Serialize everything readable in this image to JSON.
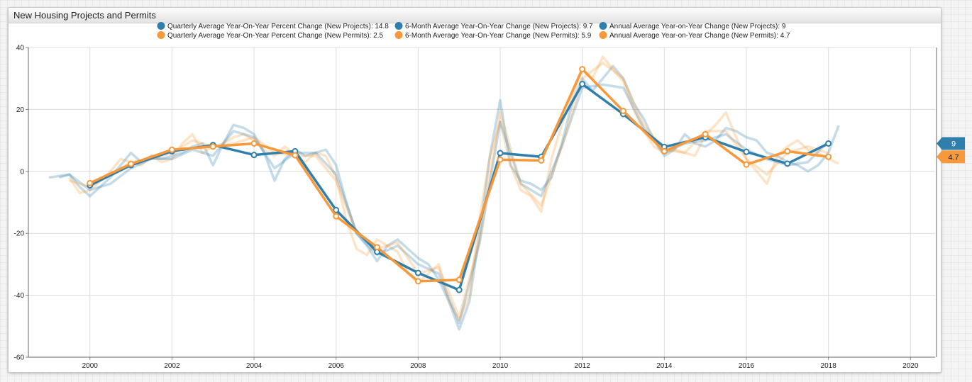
{
  "panel": {
    "title": "New Housing Projects and Permits"
  },
  "chart_data": {
    "type": "line",
    "title": "New Housing Projects and Permits",
    "xlabel": "",
    "ylabel": "",
    "xlim": [
      1998.5,
      2020.6
    ],
    "ylim": [
      -60,
      40
    ],
    "x_ticks": [
      2000,
      2002,
      2004,
      2006,
      2008,
      2010,
      2012,
      2014,
      2016,
      2018,
      2020
    ],
    "y_ticks": [
      40,
      20,
      0,
      -20,
      -40,
      -60
    ],
    "grid": true,
    "legend_position": "top-center",
    "series": [
      {
        "name": "Quarterly Average Year-On-Year Percent Change (New Projects): 14.8",
        "color": "#2f7fad",
        "style": "faint",
        "x": [
          1999.25,
          1999.5,
          1999.75,
          2000.0,
          2000.25,
          2000.5,
          2000.75,
          2001.0,
          2001.25,
          2001.5,
          2001.75,
          2002.0,
          2002.25,
          2002.5,
          2002.75,
          2003.0,
          2003.25,
          2003.5,
          2003.75,
          2004.0,
          2004.25,
          2004.5,
          2004.75,
          2005.0,
          2005.25,
          2005.5,
          2005.75,
          2006.0,
          2006.25,
          2006.5,
          2006.75,
          2007.0,
          2007.25,
          2007.5,
          2007.75,
          2008.0,
          2008.25,
          2008.5,
          2008.75,
          2009.0,
          2009.25,
          2009.5,
          2009.75,
          2010.0,
          2010.25,
          2010.5,
          2010.75,
          2011.0,
          2011.25,
          2011.5,
          2011.75,
          2012.0,
          2012.25,
          2012.5,
          2012.75,
          2013.0,
          2013.25,
          2013.5,
          2013.75,
          2014.0,
          2014.25,
          2014.5,
          2014.75,
          2015.0,
          2015.25,
          2015.5,
          2015.75,
          2016.0,
          2016.25,
          2016.5,
          2016.75,
          2017.0,
          2017.25,
          2017.5,
          2017.75,
          2018.0,
          2018.25
        ],
        "y": [
          -2,
          -1,
          -5,
          -8,
          -5,
          -2,
          2,
          6,
          3,
          5,
          4,
          5,
          6,
          8,
          9,
          2,
          9,
          15,
          14,
          12,
          6,
          -3,
          4,
          7,
          5,
          6,
          7,
          2,
          -10,
          -20,
          -24,
          -29,
          -24,
          -22,
          -25,
          -28,
          -30,
          -35,
          -42,
          -51,
          -42,
          -20,
          5,
          23,
          2,
          -3,
          -4,
          -6,
          -2,
          9,
          22,
          30,
          26,
          30,
          34,
          30,
          22,
          17,
          10,
          5,
          7,
          12,
          9,
          8,
          10,
          14,
          13,
          11,
          10,
          6,
          5,
          3,
          2,
          0,
          2,
          6,
          14.8
        ]
      },
      {
        "name": "Quarterly Average Year-On-Year Percent Change (New Permits): 2.5",
        "color": "#f7993a",
        "style": "faint",
        "x": [
          1999.5,
          1999.75,
          2000.0,
          2000.25,
          2000.5,
          2000.75,
          2001.0,
          2001.25,
          2001.5,
          2001.75,
          2002.0,
          2002.25,
          2002.5,
          2002.75,
          2003.0,
          2003.25,
          2003.5,
          2003.75,
          2004.0,
          2004.25,
          2004.5,
          2004.75,
          2005.0,
          2005.25,
          2005.5,
          2005.75,
          2006.0,
          2006.25,
          2006.5,
          2006.75,
          2007.0,
          2007.25,
          2007.5,
          2007.75,
          2008.0,
          2008.25,
          2008.5,
          2008.75,
          2009.0,
          2009.25,
          2009.5,
          2009.75,
          2010.0,
          2010.25,
          2010.5,
          2010.75,
          2011.0,
          2011.25,
          2011.5,
          2011.75,
          2012.0,
          2012.25,
          2012.5,
          2012.75,
          2013.0,
          2013.25,
          2013.5,
          2013.75,
          2014.0,
          2014.25,
          2014.5,
          2014.75,
          2015.0,
          2015.25,
          2015.5,
          2015.75,
          2016.0,
          2016.25,
          2016.5,
          2016.75,
          2017.0,
          2017.25,
          2017.5,
          2017.75,
          2018.0,
          2018.25
        ],
        "y": [
          -2,
          -7,
          -6,
          -3,
          0,
          4,
          3,
          2,
          5,
          3,
          4,
          9,
          12,
          6,
          8,
          9,
          11,
          12,
          10,
          7,
          5,
          8,
          5,
          3,
          6,
          5,
          -2,
          -16,
          -25,
          -27,
          -22,
          -24,
          -26,
          -33,
          -36,
          -33,
          -30,
          -42,
          -48,
          -40,
          -15,
          5,
          16,
          2,
          -6,
          -8,
          -13,
          4,
          15,
          24,
          33,
          30,
          37,
          33,
          29,
          20,
          13,
          8,
          6,
          7,
          6,
          5,
          12,
          15,
          19,
          11,
          4,
          0,
          -4,
          5,
          8,
          10,
          7,
          6,
          4,
          2.5
        ]
      },
      {
        "name": "6-Month Average Year-On-Year Change (New Projects): 9.7",
        "color": "#2f7fad",
        "style": "faint",
        "x": [
          1999.0,
          1999.5,
          2000.0,
          2000.5,
          2001.0,
          2001.5,
          2002.0,
          2002.5,
          2003.0,
          2003.5,
          2004.0,
          2004.5,
          2005.0,
          2005.5,
          2006.0,
          2006.5,
          2007.0,
          2007.5,
          2008.0,
          2008.5,
          2009.0,
          2009.5,
          2010.0,
          2010.5,
          2011.0,
          2011.5,
          2012.0,
          2012.5,
          2013.0,
          2013.5,
          2014.0,
          2014.5,
          2015.0,
          2015.5,
          2016.0,
          2016.5,
          2017.0,
          2017.5,
          2018.0
        ],
        "y": [
          -2,
          -1,
          -6,
          -4,
          1,
          4,
          4,
          7,
          5,
          13,
          11,
          1,
          6,
          6,
          -1,
          -20,
          -27,
          -24,
          -30,
          -33,
          -49,
          -23,
          16,
          -4,
          -8,
          8,
          27,
          28,
          27,
          14,
          6,
          9,
          10,
          12,
          7,
          4,
          2,
          3,
          9.7
        ]
      },
      {
        "name": "6-Month Average Year-On-Year Change (New Permits): 5.9",
        "color": "#f7993a",
        "style": "faint",
        "x": [
          1999.5,
          2000.0,
          2000.5,
          2001.0,
          2001.5,
          2002.0,
          2002.5,
          2003.0,
          2003.5,
          2004.0,
          2004.5,
          2005.0,
          2005.5,
          2006.0,
          2006.5,
          2007.0,
          2007.5,
          2008.0,
          2008.5,
          2009.0,
          2009.5,
          2010.0,
          2010.5,
          2011.0,
          2011.5,
          2012.0,
          2012.5,
          2013.0,
          2013.5,
          2014.0,
          2014.5,
          2015.0,
          2015.5,
          2016.0,
          2016.5,
          2017.0,
          2017.5,
          2018.0
        ],
        "y": [
          -3,
          -5,
          -1,
          3,
          4,
          6,
          10,
          8,
          9,
          11,
          6,
          5,
          5,
          -3,
          -20,
          -25,
          -23,
          -33,
          -31,
          -47,
          -22,
          19,
          -4,
          -11,
          8,
          30,
          35,
          30,
          15,
          7,
          6,
          13,
          13,
          4,
          -1,
          6,
          8,
          5.9
        ]
      },
      {
        "name": "Annual Average Year-on-Year Change (New Projects): 9",
        "color": "#2f7fad",
        "style": "bold",
        "x": [
          2000,
          2001,
          2002,
          2003,
          2004,
          2005,
          2006,
          2007,
          2008,
          2009,
          2010,
          2011,
          2012,
          2013,
          2014,
          2015,
          2016,
          2017,
          2018
        ],
        "y": [
          -4.5,
          2,
          6.5,
          8.5,
          5.3,
          6.5,
          -12.5,
          -26,
          -32.8,
          -38.3,
          5.9,
          4.7,
          28.2,
          18.5,
          7.9,
          11,
          6.3,
          2.5,
          9
        ]
      },
      {
        "name": "Annual Average Year-on-Year Change (New Permits): 4.7",
        "color": "#f7993a",
        "style": "bold",
        "x": [
          2000,
          2001,
          2002,
          2003,
          2004,
          2005,
          2006,
          2007,
          2008,
          2009,
          2010,
          2011,
          2012,
          2013,
          2014,
          2015,
          2016,
          2017,
          2018
        ],
        "y": [
          -3.8,
          2.4,
          7,
          8,
          9,
          5.2,
          -14.5,
          -24.5,
          -35.5,
          -35,
          3.8,
          3.5,
          33,
          19.5,
          6.5,
          12,
          2.2,
          6.5,
          4.7
        ]
      }
    ],
    "end_labels": [
      {
        "text": "9",
        "value": 9,
        "color": "#2f7fad"
      },
      {
        "text": "4.7",
        "value": 4.7,
        "color": "#f7993a"
      }
    ]
  }
}
